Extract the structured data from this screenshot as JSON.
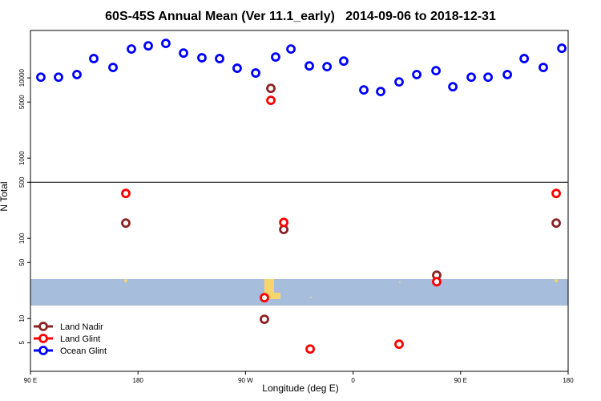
{
  "chart_data": {
    "type": "scatter",
    "title": "60S-45S Annual Mean (Ver 11.1_early)   2014-09-06 to 2018-12-31",
    "x_label": "Longitude (deg E)",
    "y_label": "N Total",
    "xlim": [
      90,
      540
    ],
    "ylim": [
      2.2,
      39000
    ],
    "log_y": true,
    "hline": 500,
    "legend": "lower left",
    "xticks": [
      {
        "value": 90,
        "label": "90 E"
      },
      180,
      {
        "value": 270,
        "label": "90 W"
      },
      {
        "value": 360,
        "label": "0"
      },
      {
        "value": 450,
        "label": "90 E"
      },
      {
        "value": 540,
        "label": "180"
      }
    ],
    "yticks": [
      5,
      10,
      50,
      100,
      500,
      1000,
      5000,
      10000
    ],
    "series": [
      {
        "name": "Land Nadir",
        "color": "#8b2323",
        "x": [
          291.2,
          169.8,
          302,
          430,
          285.8,
          530
        ],
        "values": [
          7410,
          155,
          129,
          34.7,
          9.8,
          155
        ]
      },
      {
        "name": "Land Glint",
        "color": "#ff0000",
        "x": [
          291.2,
          169.8,
          302,
          430,
          285.8,
          324.1,
          398.5,
          530
        ],
        "values": [
          5250,
          363,
          158,
          28.8,
          18.2,
          4.17,
          4.79,
          363
        ]
      },
      {
        "name": "Ocean Glint",
        "color": "#0000ff",
        "x": [
          98.7,
          113.5,
          128.9,
          143,
          159.1,
          174.5,
          188.6,
          203.3,
          218.1,
          233.5,
          248.3,
          263,
          278.5,
          295.2,
          308,
          323.4,
          338.2,
          352.2,
          369,
          383.1,
          398.5,
          413.3,
          429.4,
          443.5,
          458.9,
          473,
          489.1,
          503.2,
          519.2,
          534.7
        ],
        "values": [
          10200,
          10200,
          11000,
          17400,
          13500,
          22900,
          25100,
          26900,
          20400,
          17800,
          17400,
          13200,
          11500,
          18200,
          22900,
          14100,
          13800,
          16200,
          7080,
          6760,
          8910,
          11000,
          12300,
          7760,
          10200,
          10200,
          11000,
          17400,
          13500,
          23400
        ]
      }
    ]
  }
}
